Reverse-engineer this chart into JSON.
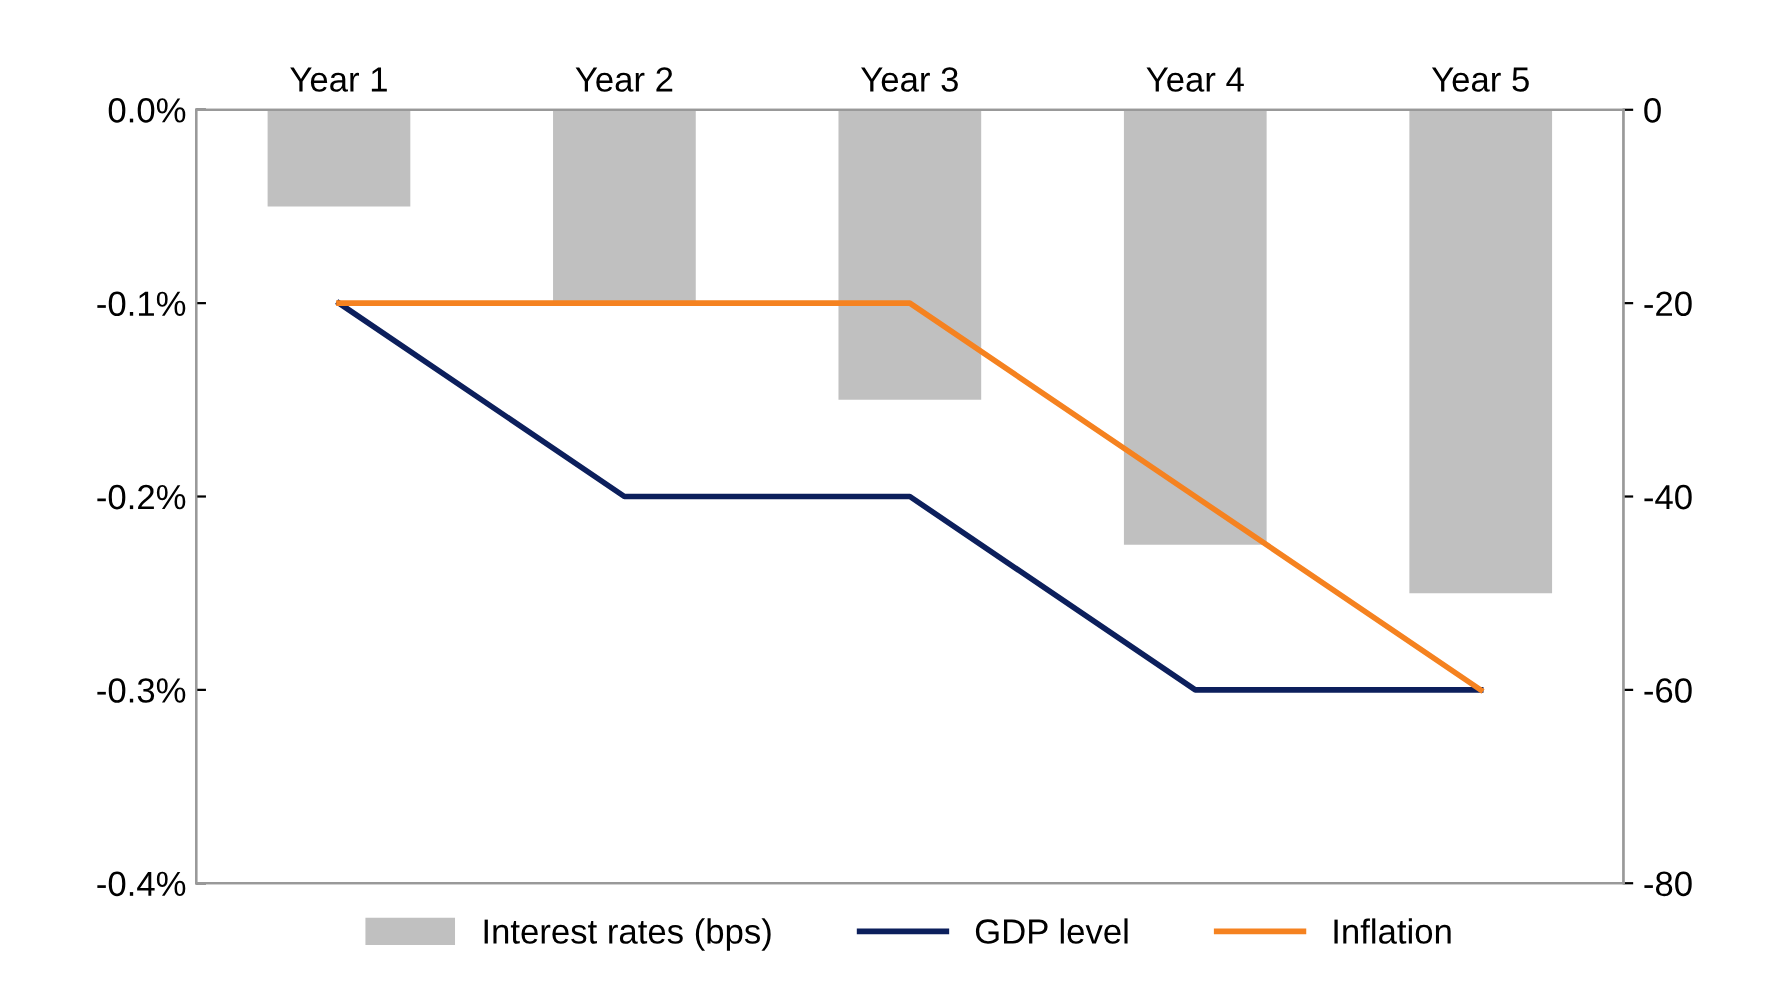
{
  "chart_data": {
    "type": "bar",
    "categories": [
      "Year 1",
      "Year 2",
      "Year 3",
      "Year 4",
      "Year 5"
    ],
    "series": [
      {
        "name": "Interest rates (bps)",
        "axis": "y2",
        "color": "#c0c0c0",
        "values": [
          -10,
          -20,
          -30,
          -45,
          -50
        ]
      },
      {
        "name": "GDP level",
        "type": "line",
        "color": "#0c1f5c",
        "values": [
          -0.1,
          -0.2,
          -0.2,
          -0.3,
          -0.3
        ]
      },
      {
        "name": "Inflation",
        "type": "line",
        "color": "#f58220",
        "values": [
          -0.1,
          -0.1,
          -0.1,
          -0.2,
          -0.3
        ]
      }
    ],
    "ylim": [
      -0.4,
      0
    ],
    "yticks": [
      {
        "value": 0,
        "label": "0.0%"
      },
      {
        "value": -0.1,
        "label": "-0.1%"
      },
      {
        "value": -0.2,
        "label": "-0.2%"
      },
      {
        "value": -0.3,
        "label": "-0.3%"
      },
      {
        "value": -0.4,
        "label": "-0.4%"
      }
    ],
    "y2lim": [
      -80,
      0
    ],
    "y2ticks": [
      0,
      -20,
      -40,
      -60,
      -80
    ],
    "grid": false,
    "legend": "bottom",
    "marker": "none",
    "line_style": "solid"
  }
}
